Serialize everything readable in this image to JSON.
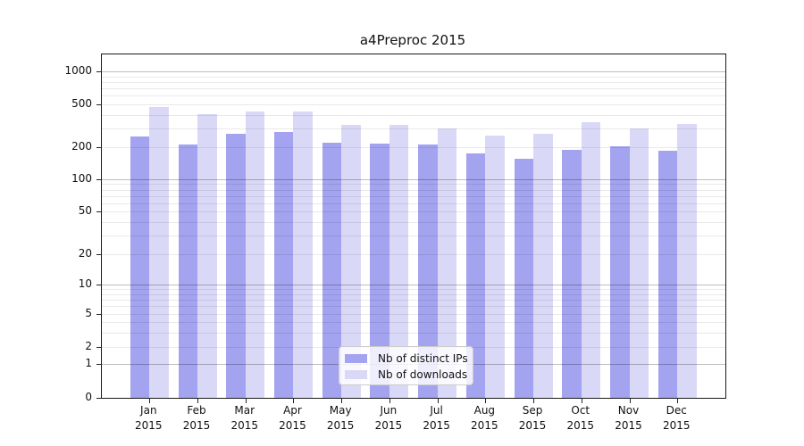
{
  "title": "a4Preproc 2015",
  "chart_data": {
    "type": "bar",
    "title": "a4Preproc 2015",
    "months": [
      "Jan",
      "Feb",
      "Mar",
      "Apr",
      "May",
      "Jun",
      "Jul",
      "Aug",
      "Sep",
      "Oct",
      "Nov",
      "Dec"
    ],
    "year": "2015",
    "series": [
      {
        "name": "Nb of distinct IPs",
        "color": "#a3a3ef",
        "values": [
          252,
          212,
          268,
          278,
          221,
          216,
          213,
          176,
          155,
          188,
          202,
          186
        ]
      },
      {
        "name": "Nb of downloads",
        "color": "#d9d9f7",
        "values": [
          468,
          403,
          427,
          429,
          320,
          322,
          299,
          256,
          268,
          341,
          297,
          329
        ]
      }
    ],
    "y_ticks": [
      0,
      1,
      2,
      5,
      10,
      20,
      50,
      100,
      200,
      500,
      1000
    ],
    "y_scale": "symlog",
    "ylim": [
      0,
      1400
    ],
    "grid": true,
    "legend_position": "lower center"
  }
}
